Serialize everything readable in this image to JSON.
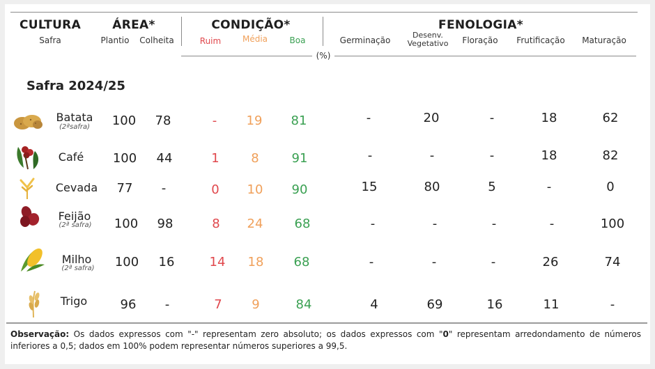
{
  "headers": {
    "cultura": "CULTURA",
    "safra": "Safra",
    "area": "ÁREA*",
    "plantio": "Plantio",
    "colheita": "Colheita",
    "condicao": "CONDIÇÃO*",
    "ruim": "Ruim",
    "media": "Média",
    "boa": "Boa",
    "fenologia": "FENOLOGIA*",
    "germinacao": "Germinação",
    "desenv_line1": "Desenv.",
    "desenv_line2": "Vegetativo",
    "floracao": "Floração",
    "frutificacao": "Frutificação",
    "maturacao": "Maturação",
    "percent": "(%)"
  },
  "section_title": "Safra 2024/25",
  "colors": {
    "ruim": "#e0474c",
    "media": "#f0a05a",
    "boa": "#3aa052"
  },
  "rows": [
    {
      "icon": "potato-icon",
      "name": "Batata",
      "note": "(2ªsafra)",
      "plantio": "100",
      "colheita": "78",
      "ruim": "-",
      "media": "19",
      "boa": "81",
      "germinacao": "-",
      "desenv": "20",
      "floracao": "-",
      "frutificacao": "18",
      "maturacao": "62"
    },
    {
      "icon": "coffee-icon",
      "name": "Café",
      "note": "",
      "plantio": "100",
      "colheita": "44",
      "ruim": "1",
      "media": "8",
      "boa": "91",
      "germinacao": "-",
      "desenv": "-",
      "floracao": "-",
      "frutificacao": "18",
      "maturacao": "82"
    },
    {
      "icon": "barley-icon",
      "name": "Cevada",
      "note": "",
      "plantio": "77",
      "colheita": "-",
      "ruim": "0",
      "media": "10",
      "boa": "90",
      "germinacao": "15",
      "desenv": "80",
      "floracao": "5",
      "frutificacao": "-",
      "maturacao": "0"
    },
    {
      "icon": "bean-icon",
      "name": "Feijão",
      "note": "(2ª safra)",
      "plantio": "100",
      "colheita": "98",
      "ruim": "8",
      "media": "24",
      "boa": "68",
      "germinacao": "-",
      "desenv": "-",
      "floracao": "-",
      "frutificacao": "-",
      "maturacao": "100"
    },
    {
      "icon": "corn-icon",
      "name": "Milho",
      "note": "(2ª safra)",
      "plantio": "100",
      "colheita": "16",
      "ruim": "14",
      "media": "18",
      "boa": "68",
      "germinacao": "-",
      "desenv": "-",
      "floracao": "-",
      "frutificacao": "26",
      "maturacao": "74"
    },
    {
      "icon": "wheat-icon",
      "name": "Trigo",
      "note": "",
      "plantio": "96",
      "colheita": "-",
      "ruim": "7",
      "media": "9",
      "boa": "84",
      "germinacao": "4",
      "desenv": "69",
      "floracao": "16",
      "frutificacao": "11",
      "maturacao": "-"
    }
  ],
  "footer": {
    "label": "Observação:",
    "text1": " Os dados expressos com \"-\" representam zero absoluto; os dados expressos com \"",
    "zero": "0",
    "text2": "\" representam arredondamento de números inferiores a 0,5; dados em 100% podem representar números superiores a 99,5."
  }
}
